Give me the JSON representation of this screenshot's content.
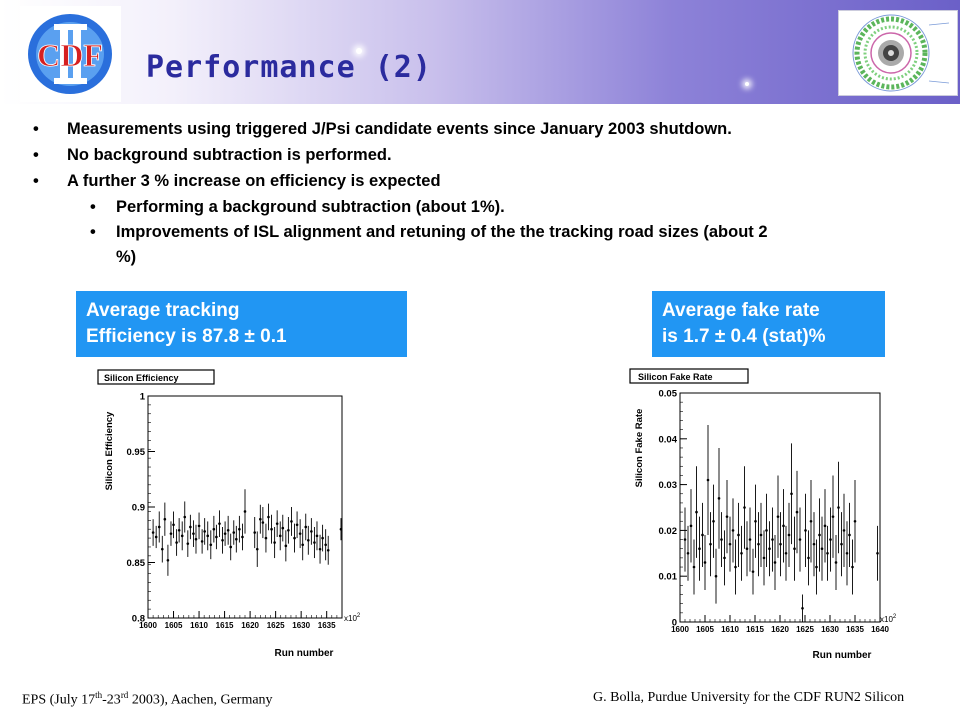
{
  "slide": {
    "title": "Performance (2)",
    "logo_text": "CDF",
    "logo_roman": "II"
  },
  "bullets": {
    "b1": "Measurements using triggered J/Psi candidate events since January 2003 shutdown.",
    "b2": "No background subtraction is performed.",
    "b3": "A further 3 % increase on efficiency is expected",
    "b3_1": "Performing a background subtraction (about 1%).",
    "b3_2_line1": "Improvements of ISL alignment and retuning of the the tracking road sizes (about 2",
    "b3_2_line2": "%)"
  },
  "callouts": {
    "left_line1": "Average tracking",
    "left_line2": "Efficiency is 87.8 ± 0.1",
    "right_line1": "Average fake rate",
    "right_line2": "is 1.7 ± 0.4 (stat)%"
  },
  "footer": {
    "left_pre": "EPS (July 17",
    "left_sup1": "th",
    "left_mid": "-23",
    "left_sup2": "rd",
    "left_post": " 2003), Aachen, Germany",
    "right": "G. Bolla, Purdue University for the CDF RUN2 Silicon"
  },
  "colors": {
    "accent": "#2196f3",
    "title": "#2b2b9e"
  },
  "chart_data": [
    {
      "type": "scatter",
      "title": "Silicon Efficiency",
      "xlabel": "Run number",
      "ylabel": "Silicon Efficiency",
      "x_multiplier": "x10",
      "x_multiplier_exp": "2",
      "xlim": [
        1600,
        1638
      ],
      "ylim": [
        0.8,
        1.0
      ],
      "x_ticks": [
        "1600",
        "1605",
        "1610",
        "1615",
        "1620",
        "1625",
        "1630",
        "1635"
      ],
      "y_ticks": [
        "0.8",
        "0.85",
        "0.9",
        "0.95",
        "1"
      ],
      "points": [
        [
          1601.0,
          0.877,
          0.012
        ],
        [
          1601.6,
          0.873,
          0.01
        ],
        [
          1602.2,
          0.882,
          0.014
        ],
        [
          1602.8,
          0.862,
          0.012
        ],
        [
          1603.3,
          0.889,
          0.015
        ],
        [
          1603.9,
          0.852,
          0.014
        ],
        [
          1604.5,
          0.876,
          0.011
        ],
        [
          1605.0,
          0.884,
          0.012
        ],
        [
          1605.6,
          0.868,
          0.012
        ],
        [
          1606.1,
          0.879,
          0.011
        ],
        [
          1606.7,
          0.874,
          0.013
        ],
        [
          1607.2,
          0.891,
          0.014
        ],
        [
          1607.8,
          0.867,
          0.012
        ],
        [
          1608.3,
          0.882,
          0.011
        ],
        [
          1608.9,
          0.876,
          0.012
        ],
        [
          1609.4,
          0.871,
          0.013
        ],
        [
          1610.0,
          0.883,
          0.012
        ],
        [
          1610.6,
          0.869,
          0.011
        ],
        [
          1611.1,
          0.878,
          0.012
        ],
        [
          1611.7,
          0.874,
          0.013
        ],
        [
          1612.3,
          0.866,
          0.013
        ],
        [
          1612.9,
          0.88,
          0.012
        ],
        [
          1613.4,
          0.873,
          0.011
        ],
        [
          1614.0,
          0.885,
          0.012
        ],
        [
          1614.6,
          0.87,
          0.012
        ],
        [
          1615.1,
          0.876,
          0.011
        ],
        [
          1615.7,
          0.879,
          0.013
        ],
        [
          1616.2,
          0.864,
          0.012
        ],
        [
          1616.8,
          0.877,
          0.011
        ],
        [
          1617.3,
          0.871,
          0.012
        ],
        [
          1617.9,
          0.88,
          0.012
        ],
        [
          1618.5,
          0.873,
          0.012
        ],
        [
          1619.0,
          0.896,
          0.02
        ],
        [
          1620.9,
          0.877,
          0.014
        ],
        [
          1621.4,
          0.862,
          0.016
        ],
        [
          1622.0,
          0.889,
          0.013
        ],
        [
          1622.5,
          0.886,
          0.014
        ],
        [
          1623.1,
          0.872,
          0.013
        ],
        [
          1623.6,
          0.891,
          0.012
        ],
        [
          1624.2,
          0.88,
          0.013
        ],
        [
          1624.8,
          0.868,
          0.014
        ],
        [
          1625.3,
          0.885,
          0.012
        ],
        [
          1625.9,
          0.874,
          0.013
        ],
        [
          1626.4,
          0.881,
          0.012
        ],
        [
          1627.0,
          0.865,
          0.014
        ],
        [
          1627.5,
          0.879,
          0.012
        ],
        [
          1628.1,
          0.887,
          0.013
        ],
        [
          1628.7,
          0.872,
          0.013
        ],
        [
          1629.2,
          0.884,
          0.012
        ],
        [
          1629.8,
          0.876,
          0.013
        ],
        [
          1630.3,
          0.866,
          0.014
        ],
        [
          1630.9,
          0.882,
          0.012
        ],
        [
          1631.4,
          0.87,
          0.013
        ],
        [
          1632.0,
          0.878,
          0.012
        ],
        [
          1632.6,
          0.868,
          0.014
        ],
        [
          1633.1,
          0.874,
          0.013
        ],
        [
          1633.7,
          0.862,
          0.013
        ],
        [
          1634.2,
          0.872,
          0.012
        ],
        [
          1634.8,
          0.866,
          0.014
        ],
        [
          1635.3,
          0.861,
          0.013
        ],
        [
          1637.8,
          0.88,
          0.01
        ]
      ]
    },
    {
      "type": "scatter",
      "title": "Silicon Fake Rate",
      "xlabel": "Run number",
      "ylabel": "Silicon Fake Rate",
      "x_multiplier": "x10",
      "x_multiplier_exp": "2",
      "xlim": [
        1600,
        1640
      ],
      "ylim": [
        0,
        0.05
      ],
      "x_ticks": [
        "1600",
        "1605",
        "1610",
        "1615",
        "1620",
        "1625",
        "1630",
        "1635",
        "1640"
      ],
      "y_ticks": [
        "0",
        "0.01",
        "0.02",
        "0.03",
        "0.04",
        "0.05"
      ],
      "points": [
        [
          1601.0,
          0.018,
          0.007
        ],
        [
          1601.6,
          0.015,
          0.006
        ],
        [
          1602.2,
          0.021,
          0.008
        ],
        [
          1602.8,
          0.012,
          0.006
        ],
        [
          1603.3,
          0.024,
          0.01
        ],
        [
          1603.9,
          0.016,
          0.007
        ],
        [
          1604.5,
          0.019,
          0.007
        ],
        [
          1605.0,
          0.013,
          0.006
        ],
        [
          1605.6,
          0.031,
          0.012
        ],
        [
          1606.1,
          0.017,
          0.007
        ],
        [
          1606.7,
          0.022,
          0.008
        ],
        [
          1607.2,
          0.01,
          0.006
        ],
        [
          1607.8,
          0.027,
          0.011
        ],
        [
          1608.3,
          0.018,
          0.006
        ],
        [
          1608.9,
          0.014,
          0.006
        ],
        [
          1609.4,
          0.023,
          0.008
        ],
        [
          1610.0,
          0.017,
          0.006
        ],
        [
          1610.6,
          0.02,
          0.007
        ],
        [
          1611.1,
          0.012,
          0.006
        ],
        [
          1611.7,
          0.019,
          0.007
        ],
        [
          1612.3,
          0.015,
          0.006
        ],
        [
          1612.9,
          0.025,
          0.009
        ],
        [
          1613.4,
          0.016,
          0.006
        ],
        [
          1614.0,
          0.018,
          0.007
        ],
        [
          1614.6,
          0.011,
          0.005
        ],
        [
          1615.1,
          0.022,
          0.008
        ],
        [
          1615.7,
          0.017,
          0.007
        ],
        [
          1616.2,
          0.019,
          0.007
        ],
        [
          1616.8,
          0.014,
          0.006
        ],
        [
          1617.3,
          0.02,
          0.008
        ],
        [
          1617.9,
          0.016,
          0.006
        ],
        [
          1618.5,
          0.018,
          0.007
        ],
        [
          1619.0,
          0.013,
          0.006
        ],
        [
          1619.6,
          0.023,
          0.009
        ],
        [
          1620.1,
          0.017,
          0.007
        ],
        [
          1620.7,
          0.021,
          0.008
        ],
        [
          1621.2,
          0.015,
          0.006
        ],
        [
          1621.8,
          0.019,
          0.007
        ],
        [
          1622.3,
          0.028,
          0.011
        ],
        [
          1622.9,
          0.016,
          0.007
        ],
        [
          1623.4,
          0.024,
          0.009
        ],
        [
          1624.0,
          0.018,
          0.007
        ],
        [
          1624.5,
          0.003,
          0.003
        ],
        [
          1625.1,
          0.02,
          0.008
        ],
        [
          1625.7,
          0.014,
          0.006
        ],
        [
          1626.2,
          0.022,
          0.009
        ],
        [
          1626.8,
          0.017,
          0.007
        ],
        [
          1627.3,
          0.012,
          0.006
        ],
        [
          1627.9,
          0.019,
          0.008
        ],
        [
          1628.4,
          0.016,
          0.007
        ],
        [
          1629.0,
          0.021,
          0.008
        ],
        [
          1629.5,
          0.015,
          0.006
        ],
        [
          1630.1,
          0.018,
          0.007
        ],
        [
          1630.6,
          0.023,
          0.009
        ],
        [
          1631.2,
          0.013,
          0.006
        ],
        [
          1631.7,
          0.025,
          0.01
        ],
        [
          1632.3,
          0.017,
          0.007
        ],
        [
          1632.8,
          0.02,
          0.008
        ],
        [
          1633.4,
          0.015,
          0.007
        ],
        [
          1633.9,
          0.019,
          0.007
        ],
        [
          1634.5,
          0.012,
          0.006
        ],
        [
          1635.0,
          0.022,
          0.009
        ],
        [
          1639.5,
          0.015,
          0.006
        ]
      ]
    }
  ]
}
